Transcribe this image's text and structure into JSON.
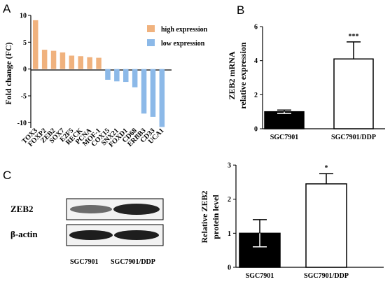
{
  "panels": {
    "A": {
      "letter": "A"
    },
    "B": {
      "letter": "B"
    },
    "C": {
      "letter": "C"
    }
  },
  "colors": {
    "high": "#F0B27E",
    "low": "#8CB9E8",
    "bar_dark": "#000000",
    "bar_white": "#ffffff"
  },
  "chart_data": [
    {
      "type": "bar",
      "panel": "A",
      "categories": [
        "TOX3",
        "FOXP2",
        "ZEB2",
        "SOX7",
        "E2F5",
        "RECK",
        "PCNA",
        "MOF-1",
        "COX15",
        "SNX21",
        "FOXD1",
        "CD68",
        "ERBB3",
        "CD33",
        "UCA1"
      ],
      "values": [
        9.1,
        3.6,
        3.4,
        3.1,
        2.5,
        2.4,
        2.2,
        2.1,
        -2.0,
        -2.3,
        -2.4,
        -3.4,
        -8.3,
        -8.9,
        -10.8
      ],
      "series": [
        {
          "name": "high expression",
          "count": 8
        },
        {
          "name": "low expression",
          "count": 7
        }
      ],
      "ylabel": "Fold change (FC)",
      "ylim": [
        -11,
        10
      ],
      "yticks": [
        "10",
        "5",
        "0",
        "-5",
        "-10"
      ],
      "legend": "top-right"
    },
    {
      "type": "bar",
      "panel": "B",
      "categories": [
        "SGC7901",
        "SGC7901/DDP"
      ],
      "values": [
        1.0,
        4.1
      ],
      "errors": [
        0.1,
        1.0
      ],
      "ylabel": [
        "ZEB2 mRNA",
        "relative expression"
      ],
      "ylim": [
        0,
        6
      ],
      "yticks": [
        "0",
        "2",
        "4",
        "6"
      ],
      "significance": "***"
    },
    {
      "type": "bar",
      "panel": "C",
      "categories": [
        "SGC7901",
        "SGC7901/DDP"
      ],
      "values": [
        1.0,
        2.45
      ],
      "errors": [
        0.4,
        0.3
      ],
      "ylabel": [
        "Relative ZEB2",
        "protein  level"
      ],
      "ylim": [
        0,
        3
      ],
      "yticks": [
        "0",
        "1",
        "2",
        "3"
      ],
      "significance": "*"
    }
  ],
  "blot": {
    "rows": [
      "ZEB2",
      "β-actin"
    ],
    "lanes": [
      "SGC7901",
      "SGC7901/DDP"
    ]
  }
}
